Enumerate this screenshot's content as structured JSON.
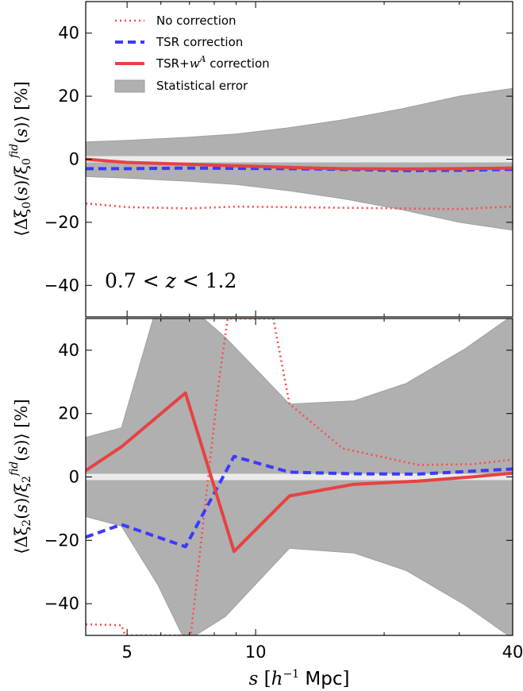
{
  "chart_data": [
    {
      "type": "line",
      "panel": "top",
      "ylabel": "⟨Δξ0(s)/ξ0fid(s)⟩ [%]",
      "annotation": "0.7 < z < 1.2",
      "xscale": "log",
      "xlim": [
        4,
        40
      ],
      "ylim": [
        -50,
        50
      ],
      "yticks": [
        -40,
        -20,
        0,
        20,
        40
      ],
      "yticklabels": [
        "−40",
        "−20",
        "0",
        "20",
        "40"
      ],
      "legend_position": "top-left",
      "reference_band": [
        -1,
        1
      ],
      "error_band": {
        "name": "Statistical error",
        "x": [
          4.0,
          5.0,
          7.0,
          9.0,
          12.0,
          16.0,
          22.0,
          30.0,
          40.0
        ],
        "upper": [
          5.5,
          6.0,
          7.0,
          8.0,
          10.0,
          12.5,
          16.0,
          20.0,
          22.5
        ],
        "lower": [
          -5.5,
          -6.0,
          -7.0,
          -8.0,
          -10.0,
          -12.5,
          -16.0,
          -20.0,
          -22.5
        ]
      },
      "series": [
        {
          "name": "No correction",
          "style": "dotted",
          "color": "#ff4a4a",
          "x": [
            4.0,
            5.0,
            7.0,
            9.0,
            12.0,
            16.0,
            22.0,
            30.0,
            40.0
          ],
          "values": [
            -14.0,
            -15.2,
            -15.6,
            -15.0,
            -15.2,
            -15.4,
            -15.6,
            -15.8,
            -15.0
          ]
        },
        {
          "name": "TSR correction",
          "style": "dashed",
          "color": "#3a3aff",
          "x": [
            4.0,
            5.0,
            7.0,
            9.0,
            12.0,
            16.0,
            22.0,
            30.0,
            40.0
          ],
          "values": [
            -3.0,
            -3.0,
            -2.8,
            -2.9,
            -3.0,
            -3.2,
            -3.6,
            -3.5,
            -3.2
          ]
        },
        {
          "name": "TSR+wA correction",
          "style": "solid",
          "color": "#e64242",
          "x": [
            4.0,
            5.0,
            7.0,
            9.0,
            12.0,
            16.0,
            22.0,
            30.0,
            40.0
          ],
          "values": [
            0.0,
            -1.0,
            -1.6,
            -2.1,
            -2.6,
            -3.0,
            -3.1,
            -3.0,
            -2.8
          ]
        }
      ]
    },
    {
      "type": "line",
      "panel": "bottom",
      "ylabel": "⟨Δξ2(s)/ξ2fid(s)⟩ [%]",
      "xlabel": "s [h−1 Mpc]",
      "xscale": "log",
      "xlim": [
        4,
        40
      ],
      "xticks": [
        5,
        10,
        40
      ],
      "xticklabels": [
        "5",
        "10",
        "40"
      ],
      "ylim": [
        -50,
        50
      ],
      "yticks": [
        -40,
        -20,
        0,
        20,
        40
      ],
      "yticklabels": [
        "−40",
        "−20",
        "0",
        "20",
        "40"
      ],
      "reference_band": [
        -1,
        1
      ],
      "error_band": {
        "name": "Statistical error",
        "x": [
          4.0,
          4.85,
          5.9,
          6.85,
          8.5,
          12.0,
          17.0,
          22.5,
          31.0,
          40.0
        ],
        "upper": [
          12.5,
          15.5,
          55.0,
          55.0,
          44.0,
          23.0,
          24.0,
          29.5,
          40.5,
          51.0
        ],
        "lower": [
          -12.5,
          -15.5,
          -34.0,
          -52.0,
          -44.0,
          -22.5,
          -24.0,
          -29.5,
          -40.5,
          -51.0
        ]
      },
      "series": [
        {
          "name": "No correction",
          "style": "dotted",
          "color": "#ff4a4a",
          "x": [
            4.0,
            4.85,
            4.95,
            7.05,
            7.6,
            8.2,
            8.6,
            11.0,
            12.0,
            16.0,
            24.0,
            32.0,
            40.0
          ],
          "values": [
            -46.5,
            -46.8,
            -50.0,
            -50.0,
            -10.0,
            30.0,
            50.0,
            50.0,
            23.0,
            9.0,
            3.8,
            4.0,
            5.5
          ]
        },
        {
          "name": "TSR correction",
          "style": "dashed",
          "color": "#3a3aff",
          "x": [
            4.0,
            4.85,
            6.85,
            8.9,
            12.0,
            17.0,
            24.0,
            32.0,
            40.0
          ],
          "values": [
            -19.0,
            -15.0,
            -22.0,
            6.5,
            1.5,
            1.0,
            0.9,
            1.8,
            2.5
          ]
        },
        {
          "name": "TSR+wA correction",
          "style": "solid",
          "color": "#e64242",
          "x": [
            4.0,
            4.85,
            6.85,
            8.9,
            12.0,
            17.0,
            24.0,
            32.0,
            40.0
          ],
          "values": [
            2.0,
            9.5,
            26.5,
            -23.5,
            -6.0,
            -2.3,
            -1.3,
            0.0,
            1.2
          ]
        }
      ]
    }
  ],
  "legend": {
    "items": [
      {
        "label": "No correction",
        "style": "dotted",
        "color": "#ff4a4a"
      },
      {
        "label": "TSR correction",
        "style": "dashed",
        "color": "#3a3aff"
      },
      {
        "label": "TSR+wA correction",
        "style": "solid",
        "color": "#e64242"
      },
      {
        "label": "Statistical error",
        "style": "patch",
        "color": "#b0b0b0"
      }
    ]
  }
}
